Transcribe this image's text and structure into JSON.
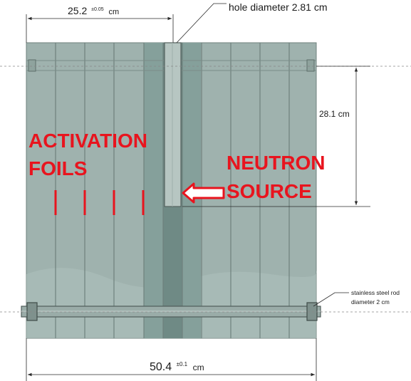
{
  "colors": {
    "plate_fill": "#9fb2ae",
    "plate_edge": "#6f817d",
    "channel_dark": "#6f8a85",
    "channel_mid": "#85a09b",
    "source_rod": "#b7c6c2",
    "label_red": "#e8141e",
    "dim_line": "#2a2a2a"
  },
  "dimensions": {
    "top_width": {
      "value": "25.2",
      "tolerance": "±0.05",
      "unit": "cm"
    },
    "hole": {
      "label": "hole diameter 2.81 cm"
    },
    "height": {
      "label": "28.1 cm"
    },
    "bottom_width": {
      "value": "50.4",
      "tolerance": "±0.1",
      "unit": "cm"
    },
    "rod": {
      "line1": "stainless steel rod",
      "line2": "diameter 2 cm"
    }
  },
  "labels": {
    "activation_line1": "ACTIVATION",
    "activation_line2": "FOILS",
    "neutron_line1": "NEUTRON",
    "neutron_line2": "SOURCE"
  }
}
